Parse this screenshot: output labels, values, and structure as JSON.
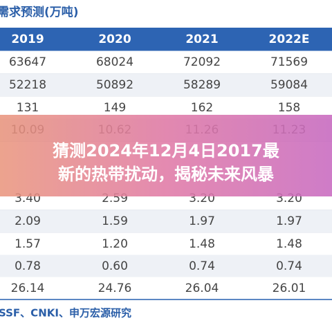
{
  "header": {
    "title": "需求预测(万吨)"
  },
  "table": {
    "columns": [
      "2019",
      "2020",
      "2021",
      "2022E"
    ],
    "rows": [
      [
        "63647",
        "68024",
        "72092",
        "71569"
      ],
      [
        "52218",
        "50892",
        "58289",
        "59084"
      ],
      [
        "131",
        "149",
        "162",
        "158"
      ],
      [
        "10.09",
        "10.62",
        "11.26",
        "11.23"
      ],
      [
        "3.40",
        "2.59",
        "3.20",
        "3.20"
      ],
      [
        "2.09",
        "1.59",
        "1.97",
        "1.97"
      ],
      [
        "1.57",
        "1.20",
        "1.48",
        "1.48"
      ],
      [
        "0.78",
        "0.60",
        "0.74",
        "0.74"
      ],
      [
        "26.14",
        "24.76",
        "26.04",
        "26.01"
      ]
    ]
  },
  "banner": {
    "lines": [
      "猜测2024年12月4日2017最",
      "新的热带扰动，揭秘未来风暴"
    ]
  },
  "source": "SSF、CNKI、申万宏源研究"
}
